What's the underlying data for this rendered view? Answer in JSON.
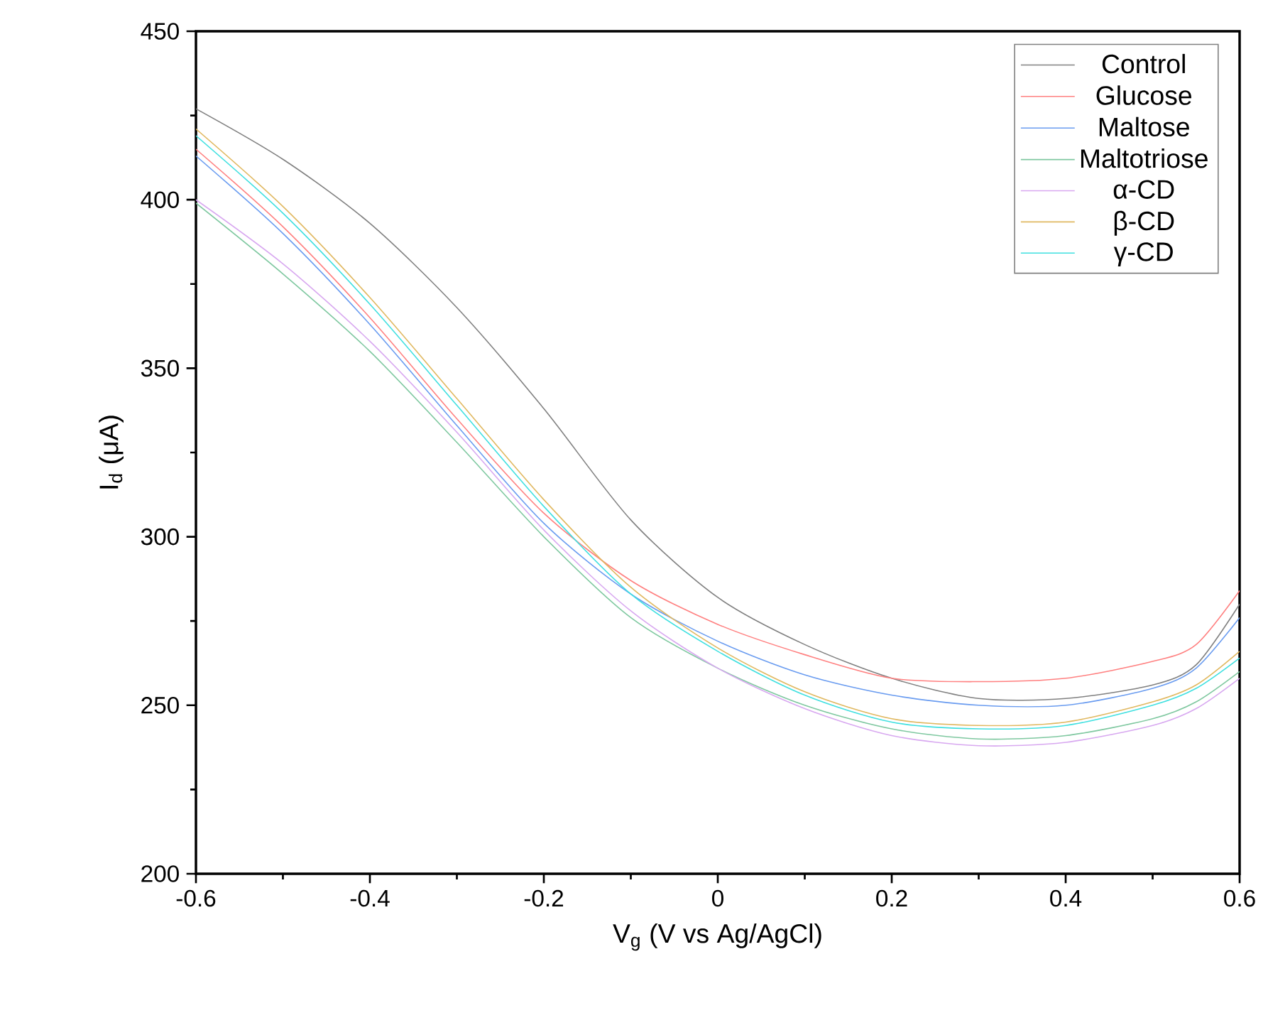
{
  "chart_data": {
    "type": "line",
    "xlabel": "V$_{g}$ (V vs Ag/AgCl)",
    "ylabel": "I$_{d}$ (μA)",
    "x": [
      -0.6,
      -0.5,
      -0.4,
      -0.3,
      -0.2,
      -0.1,
      0,
      0.1,
      0.2,
      0.3,
      0.4,
      0.5,
      0.55,
      0.6
    ],
    "xlim": [
      -0.6,
      0.6
    ],
    "ylim": [
      200,
      450
    ],
    "xticks": [
      -0.6,
      -0.4,
      -0.2,
      0,
      0.2,
      0.4,
      0.6
    ],
    "yticks": [
      200,
      250,
      300,
      350,
      400,
      450
    ],
    "legend": "top right",
    "grid": false,
    "marker": "none",
    "line_style": "solid",
    "series": [
      {
        "name": "Control",
        "color": "#808080",
        "values": [
          427,
          412,
          393,
          368,
          338,
          305,
          282,
          268,
          258,
          252,
          252,
          256,
          262,
          280
        ]
      },
      {
        "name": "Glucose",
        "color": "#ff8080",
        "values": [
          415,
          392,
          365,
          335,
          307,
          287,
          274,
          265,
          258,
          257,
          258,
          263,
          268,
          284
        ]
      },
      {
        "name": "Maltose",
        "color": "#6a9cf0",
        "values": [
          413,
          390,
          363,
          333,
          304,
          283,
          269,
          259,
          253,
          250,
          250,
          255,
          261,
          276
        ]
      },
      {
        "name": "Maltotriose",
        "color": "#7fc8a0",
        "values": [
          399,
          378,
          355,
          328,
          300,
          276,
          261,
          250,
          243,
          240,
          241,
          246,
          251,
          260
        ]
      },
      {
        "name": "α-CD",
        "color": "#d8a8f0",
        "values": [
          400,
          381,
          358,
          331,
          302,
          278,
          261,
          249,
          241,
          238,
          239,
          244,
          249,
          258
        ]
      },
      {
        "name": "β-CD",
        "color": "#e0b860",
        "values": [
          421,
          398,
          371,
          341,
          311,
          285,
          267,
          254,
          246,
          244,
          245,
          251,
          256,
          266
        ]
      },
      {
        "name": "γ-CD",
        "color": "#40e0e0",
        "values": [
          419,
          396,
          369,
          339,
          309,
          283,
          266,
          253,
          245,
          243,
          244,
          250,
          255,
          264
        ]
      }
    ]
  }
}
